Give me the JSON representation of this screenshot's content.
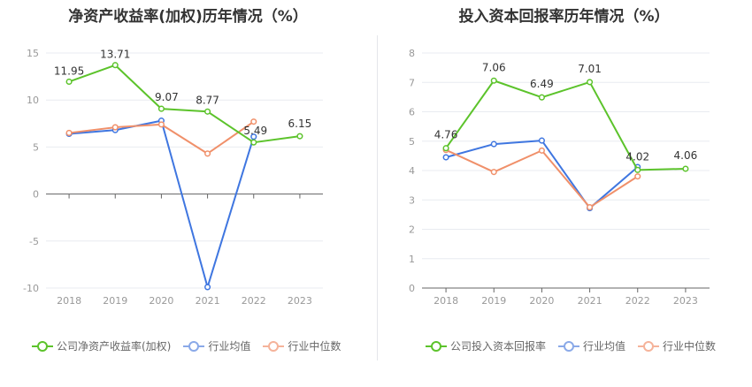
{
  "colors": {
    "company": "#5cc32b",
    "avg": "#3f76e0",
    "median": "#f0906a",
    "grid": "#e8ebf0",
    "axis": "#666666",
    "tick_text": "#999999"
  },
  "chart_data": [
    {
      "type": "line",
      "title": "净资产收益率(加权)历年情况（%）",
      "categories": [
        "2018",
        "2019",
        "2020",
        "2021",
        "2022",
        "2023"
      ],
      "ylim": [
        -10,
        15
      ],
      "yticks": [
        15,
        10,
        5,
        0,
        -5,
        -10
      ],
      "grid": true,
      "legend_position": "bottom",
      "series": [
        {
          "key": "company",
          "name": "公司净资产收益率(加权)",
          "values": [
            11.95,
            13.71,
            9.07,
            8.77,
            5.49,
            6.15
          ],
          "labels": [
            "11.95",
            "13.71",
            "9.07",
            "8.77",
            "5.49",
            "6.15"
          ]
        },
        {
          "key": "avg",
          "name": "行业均值",
          "values": [
            6.4,
            6.8,
            7.8,
            -9.9,
            6.1,
            null
          ]
        },
        {
          "key": "median",
          "name": "行业中位数",
          "values": [
            6.5,
            7.1,
            7.4,
            4.3,
            7.7,
            null
          ]
        }
      ]
    },
    {
      "type": "line",
      "title": "投入资本回报率历年情况（%）",
      "categories": [
        "2018",
        "2019",
        "2020",
        "2021",
        "2022",
        "2023"
      ],
      "ylim": [
        0,
        8
      ],
      "yticks": [
        8,
        7,
        6,
        5,
        4,
        3,
        2,
        1,
        0
      ],
      "grid": true,
      "legend_position": "bottom",
      "series": [
        {
          "key": "company",
          "name": "公司投入资本回报率",
          "values": [
            4.76,
            7.06,
            6.49,
            7.01,
            4.02,
            4.06
          ],
          "labels": [
            "4.76",
            "7.06",
            "6.49",
            "7.01",
            "4.02",
            "4.06"
          ]
        },
        {
          "key": "avg",
          "name": "行业均值",
          "values": [
            4.45,
            4.9,
            5.02,
            2.72,
            4.12,
            null
          ]
        },
        {
          "key": "median",
          "name": "行业中位数",
          "values": [
            4.7,
            3.95,
            4.68,
            2.75,
            3.8,
            null
          ]
        }
      ]
    }
  ]
}
